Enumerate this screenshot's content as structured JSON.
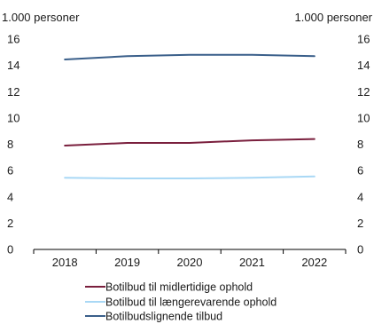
{
  "chart_data": {
    "type": "line",
    "units_left": "1.000 personer",
    "units_right": "1.000 personer",
    "x": [
      "2018",
      "2019",
      "2020",
      "2021",
      "2022"
    ],
    "ylim": [
      0,
      16
    ],
    "yticks": [
      "0",
      "2",
      "4",
      "6",
      "8",
      "10",
      "12",
      "14",
      "16"
    ],
    "grid": false,
    "legend_position": "bottom",
    "series": [
      {
        "name": "Botilbud til midlertidige ophold",
        "color": "#7a1f3d",
        "values": [
          7.9,
          8.1,
          8.1,
          8.3,
          8.4
        ]
      },
      {
        "name": "Botilbud til længerevarende ophold",
        "color": "#a9d8f5",
        "values": [
          5.45,
          5.4,
          5.4,
          5.45,
          5.55
        ]
      },
      {
        "name": "Botilbudslignende tilbud",
        "color": "#3a5f8a",
        "values": [
          14.45,
          14.7,
          14.8,
          14.8,
          14.7
        ]
      }
    ]
  }
}
